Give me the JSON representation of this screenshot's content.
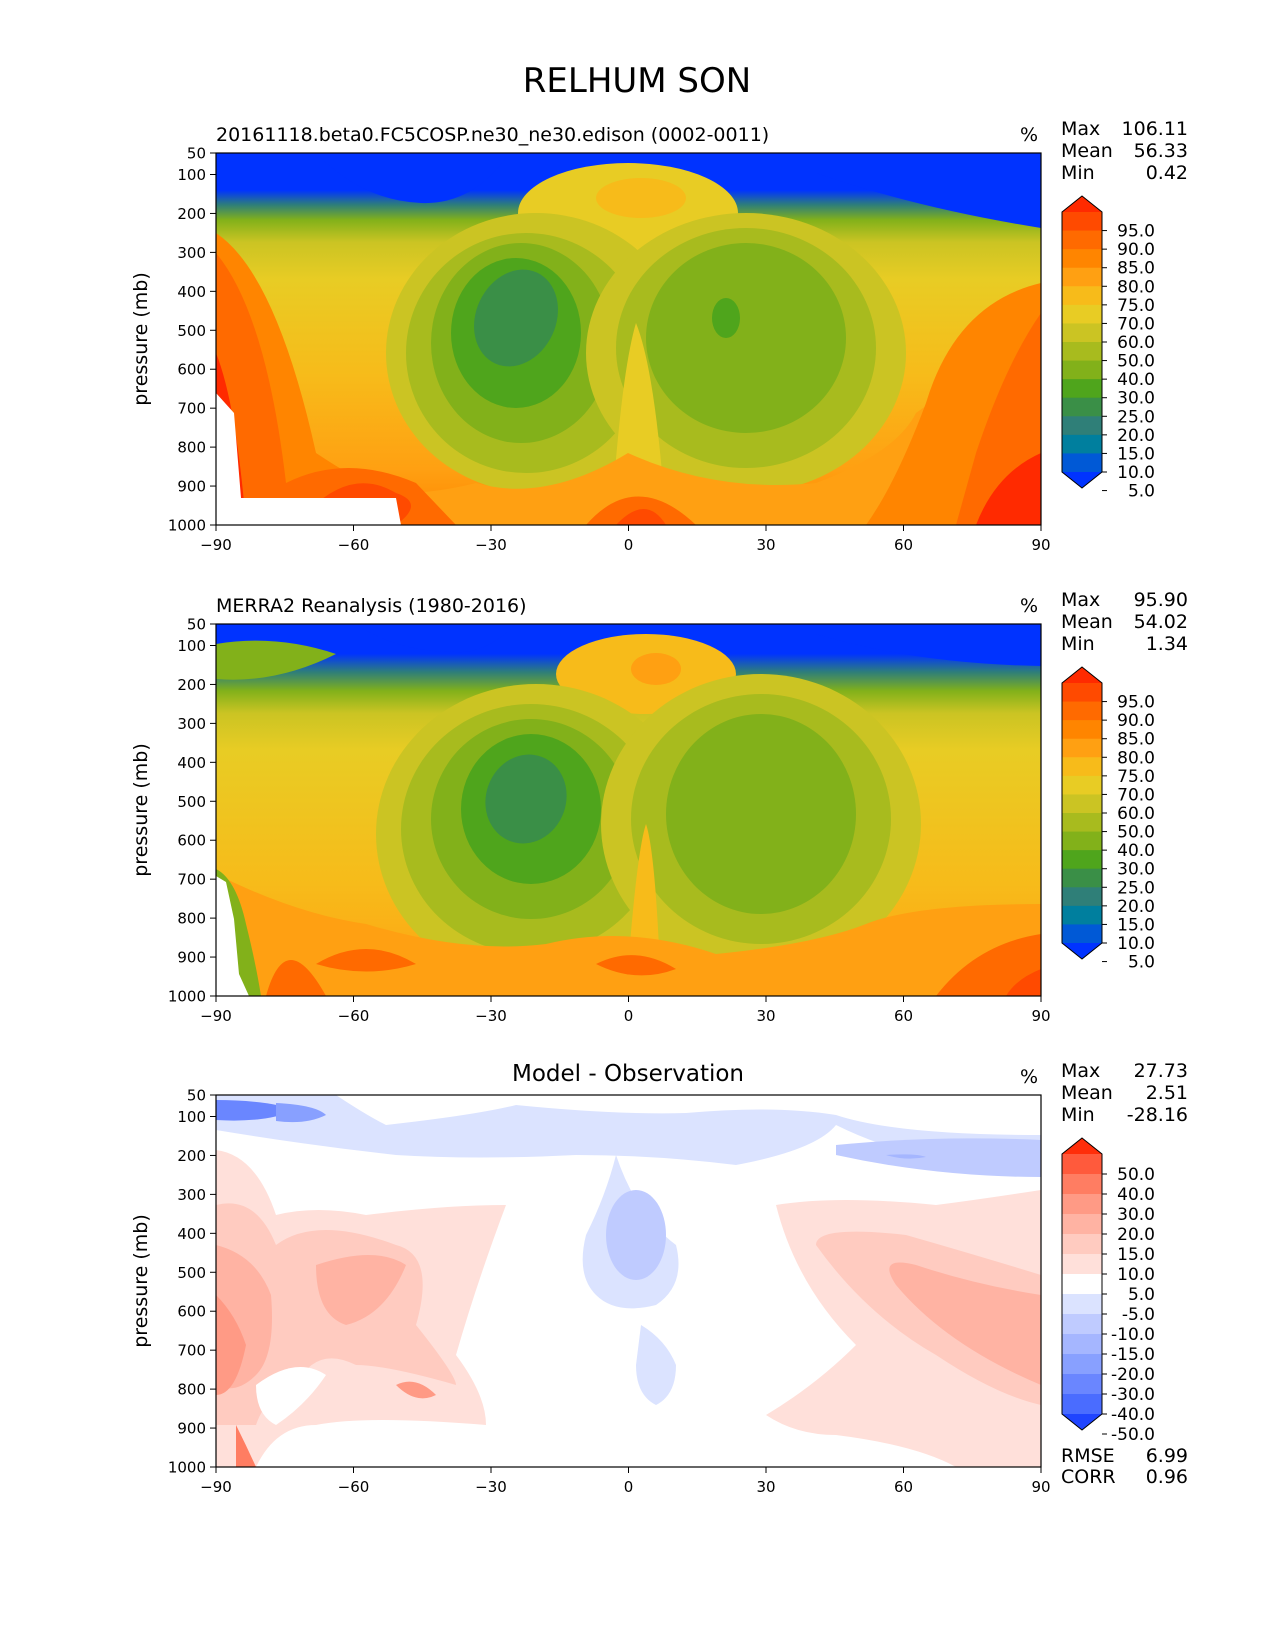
{
  "figure_title": "RELHUM SON",
  "chart_data": [
    {
      "type": "heatmap",
      "subtitle": "20161118.beta0.FC5COSP.ne30_ne30.edison (0002-0011)",
      "units": "%",
      "ylabel": "pressure (mb)",
      "xlim": [
        -90,
        90
      ],
      "ylim": [
        1000,
        50
      ],
      "x_ticks": [
        "−90",
        "−60",
        "−30",
        "0",
        "30",
        "60",
        "90"
      ],
      "y_ticks": [
        "50",
        "100",
        "200",
        "300",
        "400",
        "500",
        "600",
        "700",
        "800",
        "900",
        "1000"
      ],
      "stats": [
        {
          "label": "Max",
          "value": "106.11"
        },
        {
          "label": "Mean",
          "value": "56.33"
        },
        {
          "label": "Min",
          "value": "0.42"
        }
      ],
      "colorbar_levels": [
        "95.0",
        "90.0",
        "85.0",
        "80.0",
        "75.0",
        "70.0",
        "60.0",
        "50.0",
        "40.0",
        "30.0",
        "25.0",
        "20.0",
        "15.0",
        "10.0",
        "5.0"
      ],
      "colorbar_colors": [
        "#ff2a00",
        "#ff4a00",
        "#ff6a00",
        "#ff8500",
        "#ffa012",
        "#f7bb1a",
        "#e8cc24",
        "#cbc423",
        "#a8bb1e",
        "#82b11a",
        "#4fa51c",
        "#3a8f47",
        "#2f7f78",
        "#007f9e",
        "#0059d6",
        "#0033ff"
      ]
    },
    {
      "type": "heatmap",
      "subtitle": "MERRA2 Reanalysis (1980-2016)",
      "units": "%",
      "ylabel": "pressure (mb)",
      "xlim": [
        -90,
        90
      ],
      "ylim": [
        1000,
        50
      ],
      "x_ticks": [
        "−90",
        "−60",
        "−30",
        "0",
        "30",
        "60",
        "90"
      ],
      "y_ticks": [
        "50",
        "100",
        "200",
        "300",
        "400",
        "500",
        "600",
        "700",
        "800",
        "900",
        "1000"
      ],
      "stats": [
        {
          "label": "Max",
          "value": "95.90"
        },
        {
          "label": "Mean",
          "value": "54.02"
        },
        {
          "label": "Min",
          "value": "1.34"
        }
      ],
      "colorbar_levels": [
        "95.0",
        "90.0",
        "85.0",
        "80.0",
        "75.0",
        "70.0",
        "60.0",
        "50.0",
        "40.0",
        "30.0",
        "25.0",
        "20.0",
        "15.0",
        "10.0",
        "5.0"
      ],
      "colorbar_colors": [
        "#ff2a00",
        "#ff4a00",
        "#ff6a00",
        "#ff8500",
        "#ffa012",
        "#f7bb1a",
        "#e8cc24",
        "#cbc423",
        "#a8bb1e",
        "#82b11a",
        "#4fa51c",
        "#3a8f47",
        "#2f7f78",
        "#007f9e",
        "#0059d6",
        "#0033ff"
      ]
    },
    {
      "type": "heatmap",
      "title": "Model - Observation",
      "units": "%",
      "ylabel": "pressure (mb)",
      "xlim": [
        -90,
        90
      ],
      "ylim": [
        1000,
        50
      ],
      "x_ticks": [
        "−90",
        "−60",
        "−30",
        "0",
        "30",
        "60",
        "90"
      ],
      "y_ticks": [
        "50",
        "100",
        "200",
        "300",
        "400",
        "500",
        "600",
        "700",
        "800",
        "900",
        "1000"
      ],
      "stats": [
        {
          "label": "Max",
          "value": "27.73"
        },
        {
          "label": "Mean",
          "value": "2.51"
        },
        {
          "label": "Min",
          "value": "-28.16"
        }
      ],
      "colorbar_levels": [
        "50.0",
        "40.0",
        "30.0",
        "20.0",
        "15.0",
        "10.0",
        "5.0",
        "-5.0",
        "-10.0",
        "-15.0",
        "-20.0",
        "-30.0",
        "-40.0",
        "-50.0"
      ],
      "colorbar_colors": [
        "#ff2e0a",
        "#ff5a3c",
        "#ff7d62",
        "#ff9a85",
        "#ffb3a3",
        "#ffcbc0",
        "#ffe0da",
        "#ffffff",
        "#dbe3ff",
        "#bfcbff",
        "#a5b6ff",
        "#88a0ff",
        "#6a86ff",
        "#4a6cff",
        "#1f44ff"
      ],
      "error_stats": [
        {
          "label": "RMSE",
          "value": "6.99"
        },
        {
          "label": "CORR",
          "value": "0.96"
        }
      ]
    }
  ]
}
